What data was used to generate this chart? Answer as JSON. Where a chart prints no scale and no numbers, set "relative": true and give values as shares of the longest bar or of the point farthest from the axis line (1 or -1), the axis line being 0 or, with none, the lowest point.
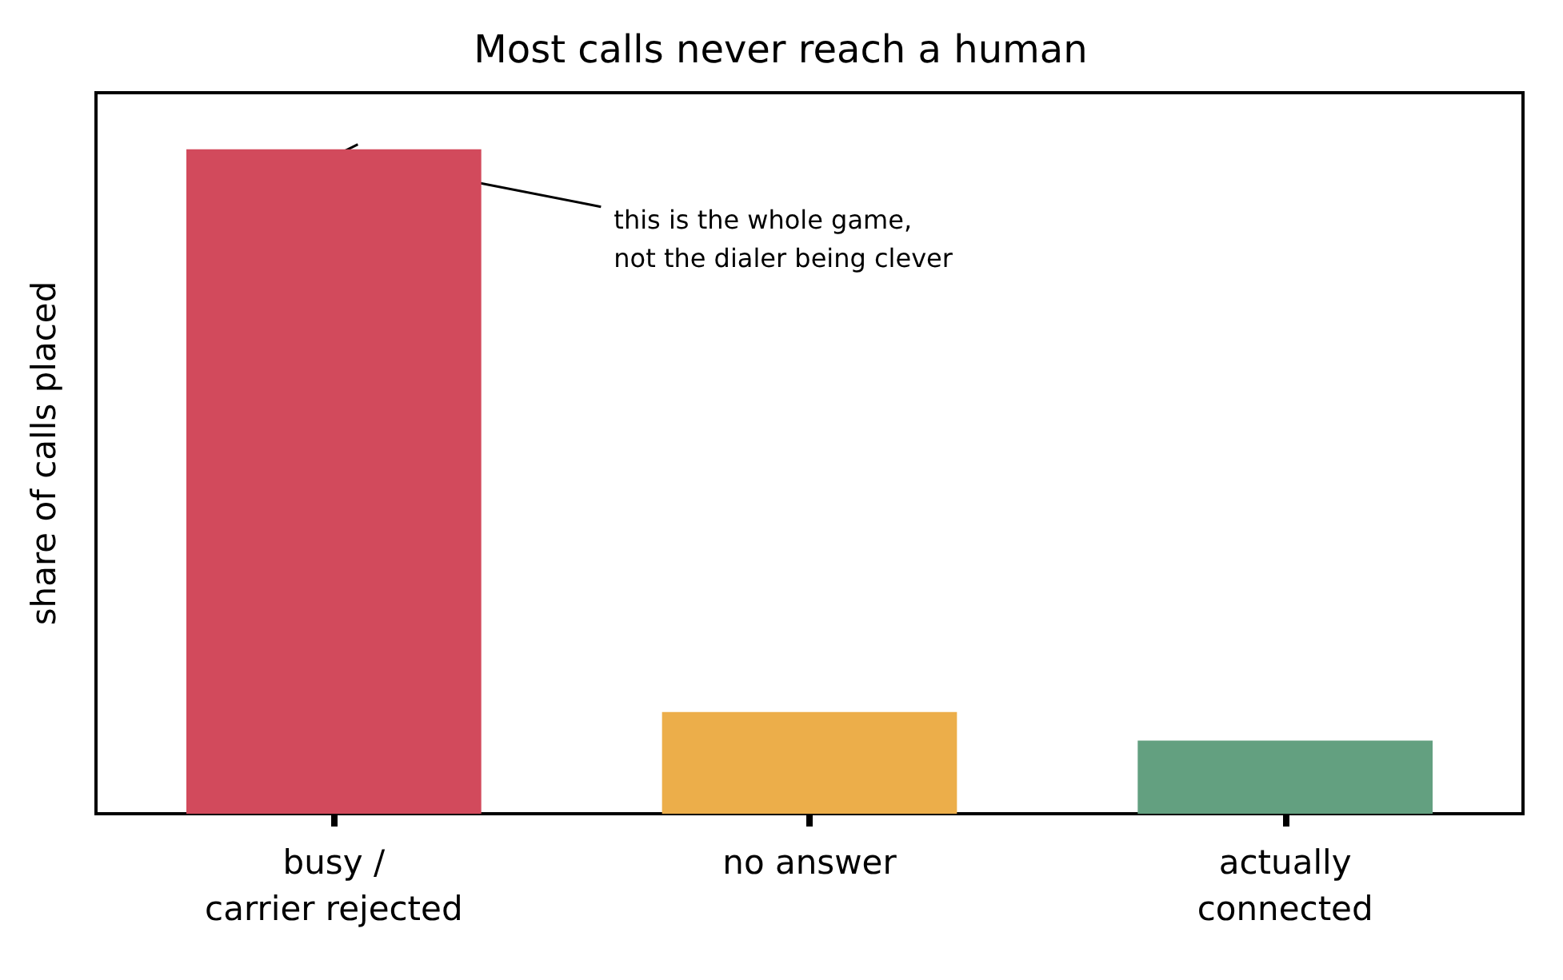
{
  "chart_data": {
    "type": "bar",
    "title": "Most calls never reach a human",
    "ylabel": "share of calls placed",
    "categories": [
      "busy /\ncarrier rejected",
      "no answer",
      "actually\nconnected"
    ],
    "values": [
      1,
      0.153,
      0.11
    ],
    "colors": [
      "#d24a5c",
      "#ecae4a",
      "#63a080"
    ],
    "relative": true,
    "tick_labels": "x",
    "grid": false,
    "annotations": [
      {
        "text": "this is the whole game,\nnot the dialer being clever",
        "x": "busy /\ncarrier rejected",
        "y": 1
      }
    ]
  }
}
